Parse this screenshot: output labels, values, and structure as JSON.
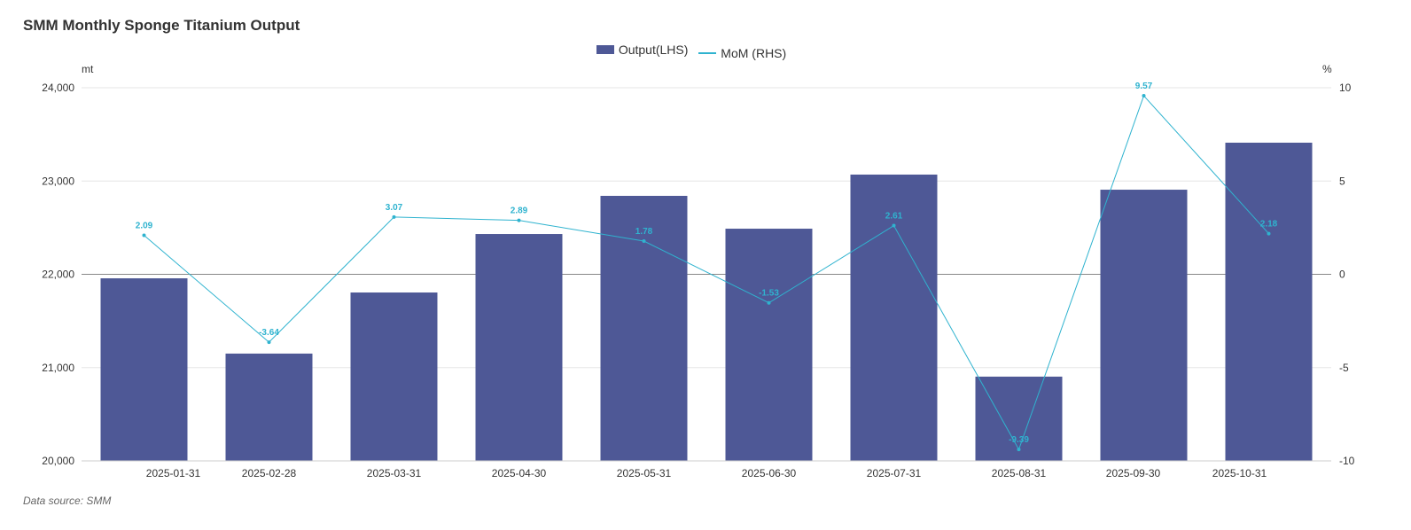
{
  "chart_data": {
    "type": "bar",
    "title": "SMM Monthly Sponge Titanium Output",
    "categories": [
      "2025-01-31",
      "2025-02-28",
      "2025-03-31",
      "2025-04-30",
      "2025-05-31",
      "2025-06-30",
      "2025-07-31",
      "2025-08-31",
      "2025-09-30",
      "2025-10-31"
    ],
    "series": [
      {
        "name": "Output(LHS)",
        "type": "bar",
        "axis": "left",
        "color": "#4e5896",
        "values": [
          21957,
          21150,
          21805,
          22432,
          22841,
          22489,
          23069,
          20903,
          22907,
          23411
        ]
      },
      {
        "name": "MoM (RHS)",
        "type": "line",
        "axis": "right",
        "color": "#2fb3cf",
        "values": [
          2.09,
          -3.64,
          3.07,
          2.89,
          1.78,
          -1.53,
          2.61,
          -9.39,
          9.57,
          2.18
        ]
      }
    ],
    "y_left": {
      "unit": "mt",
      "range": [
        20000,
        24000
      ],
      "ticks": [
        "20,000",
        "21,000",
        "22,000",
        "23,000",
        "24,000"
      ]
    },
    "y_right": {
      "unit": "%",
      "range": [
        -10,
        10
      ],
      "ticks": [
        "-10",
        "-5",
        "0",
        "5",
        "10"
      ]
    },
    "legend": "top-center"
  },
  "source": "Data source:  SMM"
}
